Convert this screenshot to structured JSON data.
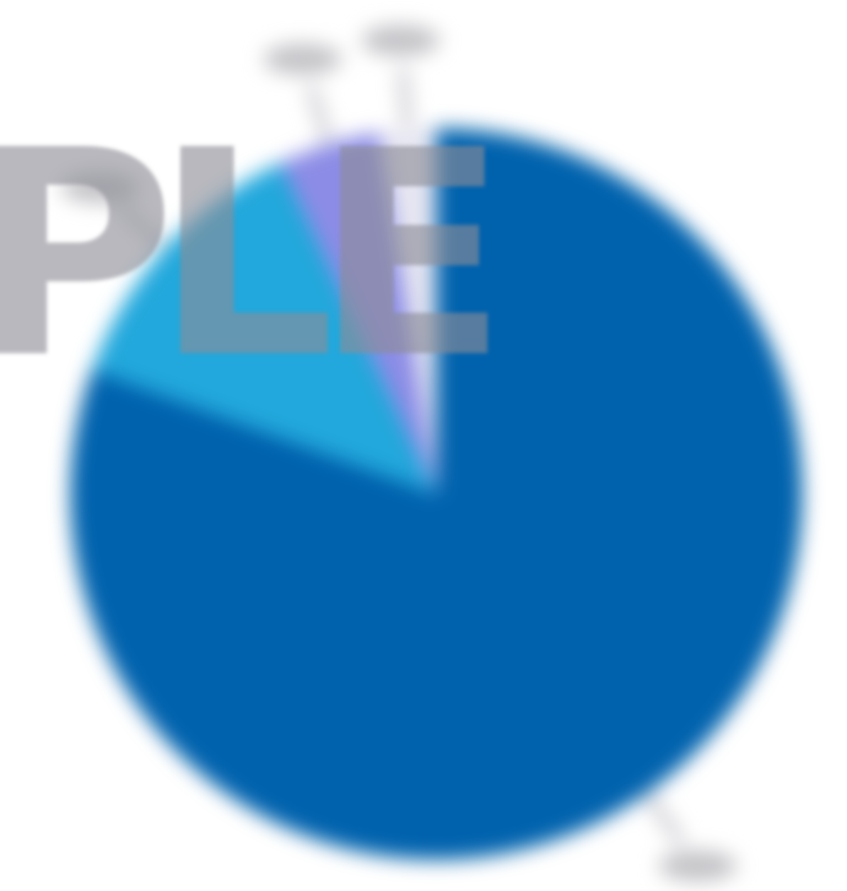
{
  "chart_data": {
    "type": "pie",
    "start_angle_deg": 0,
    "direction": "clockwise",
    "slices": [
      {
        "value": 80.5,
        "color": "#0062ad"
      },
      {
        "value": 12.5,
        "color": "#22a8dc"
      },
      {
        "value": 4.5,
        "color": "#8c8ce6"
      },
      {
        "value": 2.5,
        "color": "#e6e6f2"
      }
    ],
    "title": "",
    "legend": "none"
  },
  "watermark": {
    "text": "PLE"
  }
}
